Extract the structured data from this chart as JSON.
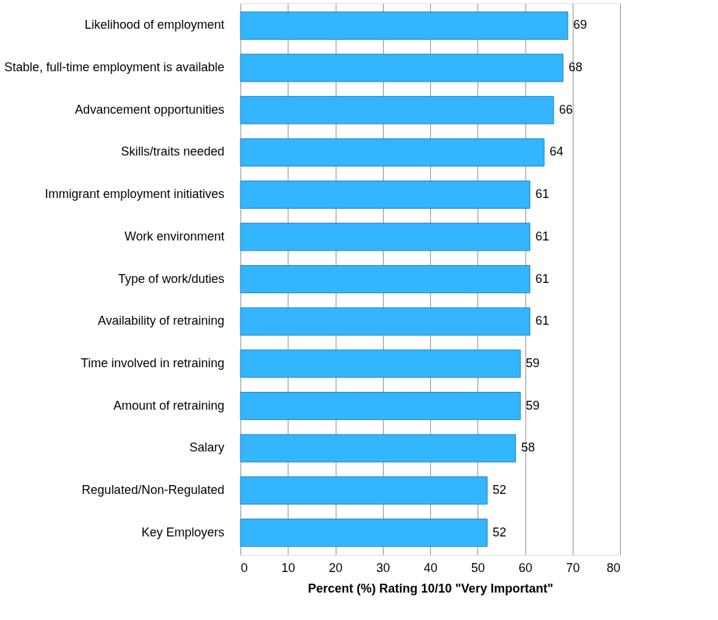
{
  "chart_data": {
    "type": "bar",
    "orientation": "horizontal",
    "categories": [
      "Likelihood of employment",
      "Stable, full-time employment is available",
      "Advancement opportunities",
      "Skills/traits needed",
      "Immigrant employment initiatives",
      "Work environment",
      "Type of work/duties",
      "Availability of retraining",
      "Time involved in retraining",
      "Amount of retraining",
      "Salary",
      "Regulated/Non-Regulated",
      "Key Employers"
    ],
    "values": [
      69,
      68,
      66,
      64,
      61,
      61,
      61,
      61,
      59,
      59,
      58,
      52,
      52
    ],
    "color": "#33b5ff",
    "xlim": [
      0,
      80
    ],
    "xticks": [
      0,
      10,
      20,
      30,
      40,
      50,
      60,
      70,
      80
    ],
    "xlabel": "Percent (%) Rating 10/10 \"Very Important\"",
    "grid": "x",
    "data_labels": true
  }
}
